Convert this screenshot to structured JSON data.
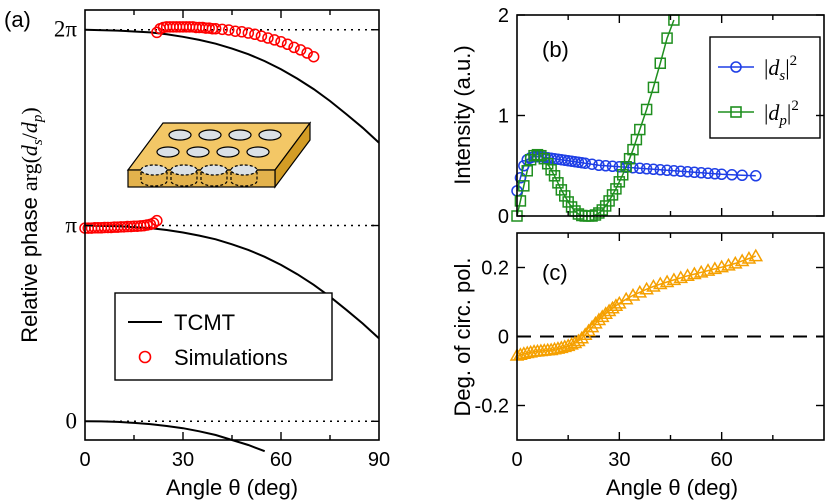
{
  "chart_data": [
    {
      "panel": "(a)",
      "type": "scatter+line",
      "xlabel": "Angle θ (deg)",
      "ylabel": "Relative phase arg(ds/dp)",
      "xlim": [
        0,
        90
      ],
      "ylim": [
        -0.3,
        6.6
      ],
      "x_ticks": [
        0,
        30,
        60,
        90
      ],
      "y_ticks": [
        {
          "value": 0,
          "label": "0"
        },
        {
          "value": 3.1416,
          "label": "π"
        },
        {
          "value": 6.2832,
          "label": "2π"
        }
      ],
      "reference_lines": [
        0,
        3.1416,
        6.2832
      ],
      "legend": {
        "position": "bottom-left",
        "entries": [
          "TCMT",
          "Simulations"
        ]
      },
      "inset": "perforated slab with circular holes",
      "series": [
        {
          "name": "TCMT",
          "style": "line",
          "color": "#000000",
          "branches": [
            {
              "x": [
                0,
                5,
                10,
                15,
                20,
                25,
                30,
                35,
                40,
                45,
                50,
                55
              ],
              "y": [
                0.0,
                -0.002,
                -0.01,
                -0.025,
                -0.045,
                -0.075,
                -0.11,
                -0.16,
                -0.22,
                -0.3,
                -0.38,
                -0.48
              ]
            },
            {
              "x": [
                0,
                10,
                20,
                25,
                30,
                35,
                40,
                45,
                50,
                55,
                60,
                65,
                70,
                75,
                80,
                85,
                90
              ],
              "y": [
                3.1416,
                3.13,
                3.1,
                3.07,
                3.03,
                2.98,
                2.92,
                2.84,
                2.75,
                2.64,
                2.51,
                2.36,
                2.19,
                2.0,
                1.79,
                1.57,
                1.33
              ]
            },
            {
              "x": [
                0,
                10,
                20,
                25,
                30,
                35,
                40,
                45,
                50,
                55,
                60,
                65,
                70,
                75,
                80,
                85,
                90
              ],
              "y": [
                6.2832,
                6.27,
                6.24,
                6.21,
                6.17,
                6.12,
                6.06,
                5.98,
                5.89,
                5.78,
                5.65,
                5.5,
                5.33,
                5.14,
                4.93,
                4.71,
                4.47
              ]
            }
          ]
        },
        {
          "name": "Simulations",
          "style": "open-circle",
          "color": "#ff0000",
          "branches": [
            {
              "x": [
                0,
                1,
                2,
                3,
                4,
                5,
                6,
                7,
                8,
                9,
                10,
                11,
                12,
                13,
                14,
                15,
                16,
                17,
                18,
                19,
                20,
                21,
                22
              ],
              "y": [
                3.1,
                3.1,
                3.1,
                3.105,
                3.105,
                3.105,
                3.11,
                3.11,
                3.11,
                3.115,
                3.115,
                3.12,
                3.12,
                3.125,
                3.125,
                3.13,
                3.13,
                3.135,
                3.14,
                3.15,
                3.16,
                3.18,
                3.22
              ]
            },
            {
              "x": [
                22,
                23,
                24,
                25,
                26,
                27,
                28,
                29,
                30,
                31,
                32,
                33,
                34,
                35,
                36,
                37,
                38,
                39,
                40,
                42,
                44,
                46,
                48,
                50,
                52,
                54,
                56,
                58,
                60,
                62,
                64,
                66,
                68,
                70
              ],
              "y": [
                6.24,
                6.3,
                6.32,
                6.33,
                6.33,
                6.33,
                6.33,
                6.33,
                6.33,
                6.33,
                6.33,
                6.33,
                6.32,
                6.32,
                6.32,
                6.31,
                6.31,
                6.3,
                6.3,
                6.29,
                6.28,
                6.26,
                6.25,
                6.23,
                6.21,
                6.18,
                6.15,
                6.12,
                6.09,
                6.05,
                6.0,
                5.96,
                5.91,
                5.85
              ]
            }
          ]
        }
      ]
    },
    {
      "panel": "(b)",
      "type": "line+markers",
      "xlabel": "",
      "ylabel": "Intensity (a.u.)",
      "xlim": [
        0,
        90
      ],
      "ylim": [
        0,
        2
      ],
      "x_ticks": [
        0,
        30,
        60
      ],
      "y_ticks": [
        0,
        1,
        2
      ],
      "legend": {
        "position": "top-right",
        "entries": [
          "|ds|2",
          "|dp|2"
        ]
      },
      "series": [
        {
          "name": "|ds|2",
          "marker": "open-circle",
          "color": "#1f3fe6",
          "x": [
            0,
            1,
            2,
            3,
            4,
            5,
            6,
            7,
            8,
            9,
            10,
            11,
            12,
            13,
            14,
            15,
            16,
            17,
            18,
            19,
            20,
            22,
            24,
            26,
            28,
            30,
            32,
            34,
            36,
            38,
            40,
            42,
            44,
            46,
            48,
            50,
            52,
            54,
            56,
            58,
            60,
            63,
            66,
            70
          ],
          "y": [
            0.25,
            0.38,
            0.5,
            0.56,
            0.58,
            0.59,
            0.59,
            0.59,
            0.585,
            0.58,
            0.575,
            0.57,
            0.565,
            0.56,
            0.555,
            0.55,
            0.545,
            0.54,
            0.535,
            0.53,
            0.525,
            0.515,
            0.505,
            0.5,
            0.495,
            0.49,
            0.485,
            0.48,
            0.475,
            0.47,
            0.465,
            0.46,
            0.455,
            0.45,
            0.445,
            0.44,
            0.435,
            0.43,
            0.425,
            0.42,
            0.415,
            0.41,
            0.405,
            0.4
          ]
        },
        {
          "name": "|dp|2",
          "marker": "open-square",
          "color": "#1f8f1f",
          "x": [
            0,
            1,
            2,
            3,
            4,
            5,
            6,
            7,
            8,
            9,
            10,
            11,
            12,
            13,
            14,
            15,
            16,
            17,
            18,
            19,
            20,
            21,
            22,
            23,
            24,
            25,
            26,
            27,
            28,
            29,
            30,
            31,
            32,
            33,
            34,
            35,
            36,
            38,
            40,
            42,
            44,
            46
          ],
          "y": [
            0.0,
            0.15,
            0.3,
            0.45,
            0.56,
            0.6,
            0.61,
            0.6,
            0.57,
            0.52,
            0.46,
            0.4,
            0.33,
            0.26,
            0.2,
            0.14,
            0.09,
            0.05,
            0.02,
            0.005,
            0.0,
            0.0,
            0.0,
            0.01,
            0.03,
            0.06,
            0.1,
            0.15,
            0.21,
            0.27,
            0.34,
            0.41,
            0.49,
            0.57,
            0.66,
            0.76,
            0.86,
            1.06,
            1.28,
            1.52,
            1.77,
            1.95
          ]
        }
      ]
    },
    {
      "panel": "(c)",
      "type": "line+markers",
      "xlabel": "Angle θ (deg)",
      "ylabel": "Deg. of circ. pol.",
      "xlim": [
        0,
        90
      ],
      "ylim": [
        -0.3,
        0.3
      ],
      "x_ticks": [
        0,
        30,
        60
      ],
      "y_ticks": [
        {
          "value": -0.2,
          "label": "-0.2"
        },
        {
          "value": 0,
          "label": "0"
        },
        {
          "value": 0.2,
          "label": "0.2"
        }
      ],
      "reference_line": 0,
      "series": [
        {
          "name": "Deg. of circ. pol.",
          "marker": "open-triangle",
          "color": "#f5a000",
          "x": [
            0,
            1,
            2,
            3,
            4,
            5,
            6,
            7,
            8,
            9,
            10,
            11,
            12,
            13,
            14,
            15,
            16,
            17,
            18,
            19,
            20,
            21,
            22,
            23,
            24,
            25,
            26,
            27,
            28,
            29,
            30,
            32,
            34,
            36,
            38,
            40,
            42,
            44,
            46,
            48,
            50,
            52,
            54,
            56,
            58,
            60,
            62,
            64,
            66,
            68,
            70
          ],
          "y": [
            -0.055,
            -0.053,
            -0.05,
            -0.048,
            -0.046,
            -0.044,
            -0.043,
            -0.042,
            -0.041,
            -0.04,
            -0.039,
            -0.037,
            -0.035,
            -0.033,
            -0.03,
            -0.027,
            -0.023,
            -0.019,
            -0.013,
            -0.005,
            0.005,
            0.016,
            0.027,
            0.038,
            0.048,
            0.057,
            0.066,
            0.074,
            0.082,
            0.089,
            0.096,
            0.108,
            0.119,
            0.128,
            0.137,
            0.145,
            0.152,
            0.158,
            0.164,
            0.17,
            0.176,
            0.181,
            0.186,
            0.191,
            0.196,
            0.201,
            0.206,
            0.212,
            0.219,
            0.226,
            0.233
          ]
        }
      ]
    }
  ]
}
